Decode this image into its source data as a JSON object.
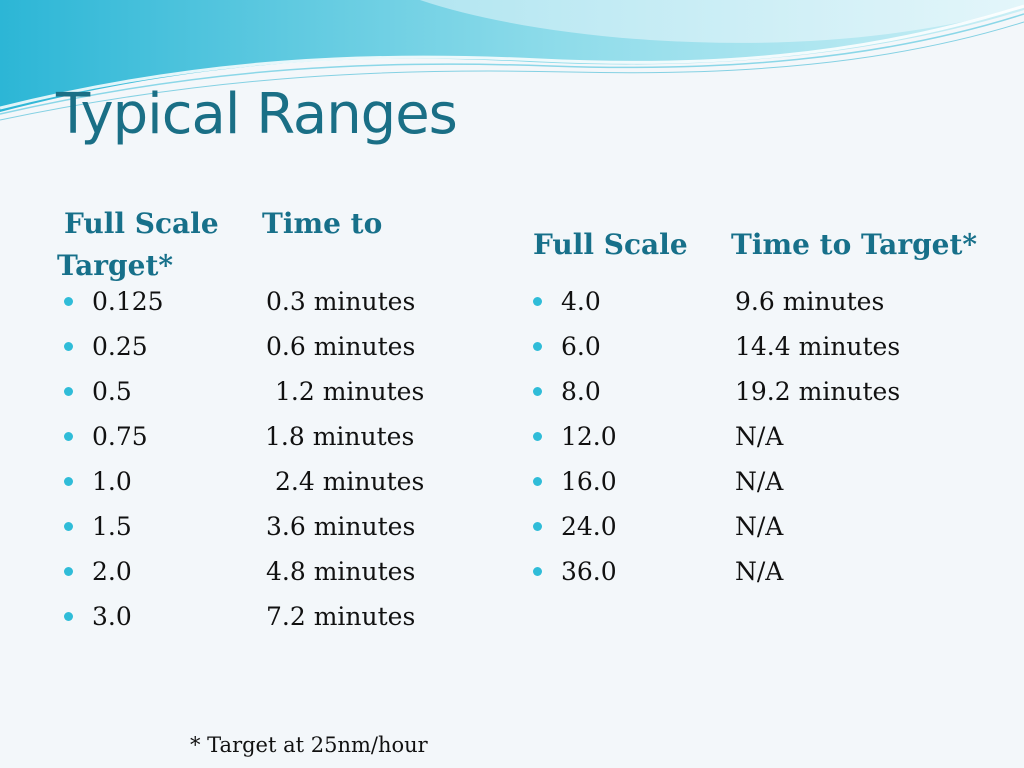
{
  "slide": {
    "title": "Typical Ranges",
    "left_header": {
      "scale_label": "Full Scale",
      "time_label_line1": "Time to",
      "time_label_line2": "Target*"
    },
    "right_header": {
      "scale_label": "Full Scale",
      "time_label": "Time to Target*"
    },
    "left_rows": [
      {
        "scale": "0.125",
        "time": "0.3 minutes"
      },
      {
        "scale": "0.25",
        "time": "0.6 minutes"
      },
      {
        "scale": "0.5",
        "time": "1.2 minutes"
      },
      {
        "scale": "0.75",
        "time": "1.8 minutes"
      },
      {
        "scale": "1.0",
        "time": "2.4 minutes"
      },
      {
        "scale": "1.5",
        "time": "3.6 minutes"
      },
      {
        "scale": "2.0",
        "time": "4.8 minutes"
      },
      {
        "scale": "3.0",
        "time": "7.2 minutes"
      }
    ],
    "right_rows": [
      {
        "scale": "4.0",
        "time": "9.6 minutes"
      },
      {
        "scale": "6.0",
        "time": "14.4 minutes"
      },
      {
        "scale": "8.0",
        "time": "19.2 minutes"
      },
      {
        "scale": "12.0",
        "time": "N/A"
      },
      {
        "scale": "16.0",
        "time": "N/A"
      },
      {
        "scale": "24.0",
        "time": "N/A"
      },
      {
        "scale": "36.0",
        "time": "N/A"
      }
    ],
    "footnote": "* Target at 25nm/hour"
  },
  "colors": {
    "title": "#1a6f86",
    "header": "#17708a",
    "bullet": "#2fbcd8",
    "background": "#f3f7fa"
  }
}
